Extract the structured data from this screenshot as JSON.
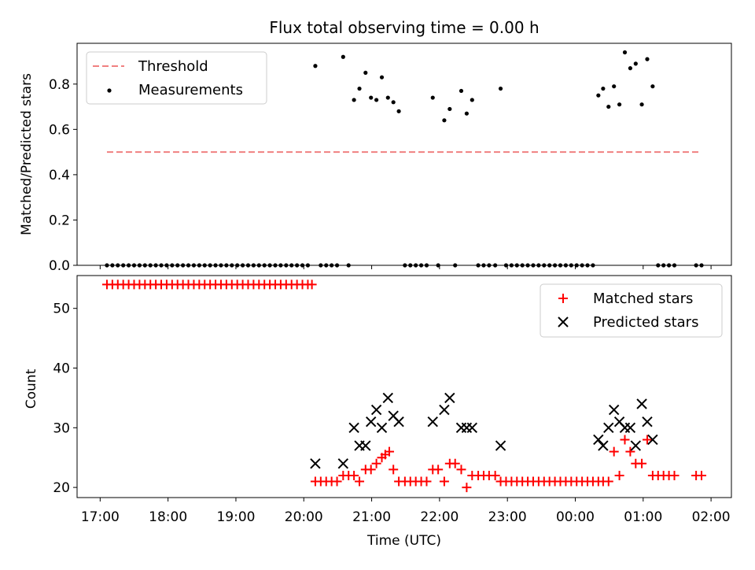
{
  "title": "Flux total observing time = 0.00 h",
  "colors": {
    "threshold": "#f08080",
    "measurement": "#000000",
    "matched": "#ff0000",
    "predicted": "#000000"
  },
  "chart_data": [
    {
      "type": "scatter",
      "ylabel": "Matched/Predicted stars",
      "ylim": [
        0,
        0.98
      ],
      "yticks": [
        0.0,
        0.2,
        0.4,
        0.6,
        0.8
      ],
      "ytick_labels": [
        "0.0",
        "0.2",
        "0.4",
        "0.6",
        "0.8"
      ],
      "xlim": [
        16.66,
        26.3
      ],
      "legend": {
        "placement": "upper-left",
        "entries": [
          "Threshold",
          "Measurements"
        ]
      },
      "threshold": {
        "name": "Threshold",
        "value": 0.5,
        "x_range": [
          17.1,
          25.85
        ]
      },
      "series": [
        {
          "name": "Measurements",
          "points": [
            [
              17.1,
              0
            ],
            [
              17.18,
              0
            ],
            [
              17.26,
              0
            ],
            [
              17.34,
              0
            ],
            [
              17.42,
              0
            ],
            [
              17.5,
              0
            ],
            [
              17.58,
              0
            ],
            [
              17.66,
              0
            ],
            [
              17.74,
              0
            ],
            [
              17.82,
              0
            ],
            [
              17.9,
              0
            ],
            [
              17.98,
              0
            ],
            [
              18.06,
              0
            ],
            [
              18.14,
              0
            ],
            [
              18.22,
              0
            ],
            [
              18.3,
              0
            ],
            [
              18.38,
              0
            ],
            [
              18.46,
              0
            ],
            [
              18.54,
              0
            ],
            [
              18.62,
              0
            ],
            [
              18.7,
              0
            ],
            [
              18.78,
              0
            ],
            [
              18.86,
              0
            ],
            [
              18.94,
              0
            ],
            [
              19.02,
              0
            ],
            [
              19.1,
              0
            ],
            [
              19.18,
              0
            ],
            [
              19.26,
              0
            ],
            [
              19.34,
              0
            ],
            [
              19.42,
              0
            ],
            [
              19.5,
              0
            ],
            [
              19.58,
              0
            ],
            [
              19.66,
              0
            ],
            [
              19.74,
              0
            ],
            [
              19.82,
              0
            ],
            [
              19.9,
              0
            ],
            [
              19.98,
              0
            ],
            [
              20.06,
              0
            ],
            [
              20.17,
              0.88
            ],
            [
              20.25,
              0
            ],
            [
              20.33,
              0
            ],
            [
              20.41,
              0
            ],
            [
              20.49,
              0
            ],
            [
              20.58,
              0.92
            ],
            [
              20.66,
              0
            ],
            [
              20.74,
              0.73
            ],
            [
              20.82,
              0.78
            ],
            [
              20.91,
              0.85
            ],
            [
              20.99,
              0.74
            ],
            [
              21.07,
              0.73
            ],
            [
              21.15,
              0.83
            ],
            [
              21.24,
              0.74
            ],
            [
              21.32,
              0.72
            ],
            [
              21.4,
              0.68
            ],
            [
              21.49,
              0
            ],
            [
              21.57,
              0
            ],
            [
              21.65,
              0
            ],
            [
              21.73,
              0
            ],
            [
              21.81,
              0
            ],
            [
              21.9,
              0.74
            ],
            [
              21.98,
              0
            ],
            [
              22.07,
              0.64
            ],
            [
              22.15,
              0.69
            ],
            [
              22.23,
              0
            ],
            [
              22.32,
              0.77
            ],
            [
              22.4,
              0.67
            ],
            [
              22.48,
              0.73
            ],
            [
              22.57,
              0
            ],
            [
              22.65,
              0
            ],
            [
              22.73,
              0
            ],
            [
              22.82,
              0
            ],
            [
              22.9,
              0.78
            ],
            [
              22.98,
              0
            ],
            [
              23.06,
              0
            ],
            [
              23.14,
              0
            ],
            [
              23.22,
              0
            ],
            [
              23.3,
              0
            ],
            [
              23.38,
              0
            ],
            [
              23.46,
              0
            ],
            [
              23.54,
              0
            ],
            [
              23.62,
              0
            ],
            [
              23.7,
              0
            ],
            [
              23.78,
              0
            ],
            [
              23.86,
              0
            ],
            [
              23.94,
              0
            ],
            [
              24.02,
              0
            ],
            [
              24.1,
              0
            ],
            [
              24.18,
              0
            ],
            [
              24.26,
              0
            ],
            [
              24.34,
              0.75
            ],
            [
              24.41,
              0.78
            ],
            [
              24.49,
              0.7
            ],
            [
              24.57,
              0.79
            ],
            [
              24.65,
              0.71
            ],
            [
              24.73,
              0.94
            ],
            [
              24.81,
              0.87
            ],
            [
              24.89,
              0.89
            ],
            [
              24.98,
              0.71
            ],
            [
              25.06,
              0.91
            ],
            [
              25.14,
              0.79
            ],
            [
              25.22,
              0
            ],
            [
              25.3,
              0
            ],
            [
              25.38,
              0
            ],
            [
              25.46,
              0
            ],
            [
              25.78,
              0
            ],
            [
              25.86,
              0
            ]
          ]
        }
      ]
    },
    {
      "type": "scatter",
      "xlabel": "Time (UTC)",
      "ylabel": "Count",
      "ylim": [
        18.3,
        55.5
      ],
      "yticks": [
        20,
        30,
        40,
        50
      ],
      "ytick_labels": [
        "20",
        "30",
        "40",
        "50"
      ],
      "xlim": [
        16.66,
        26.3
      ],
      "xticks": [
        17,
        18,
        19,
        20,
        21,
        22,
        23,
        24,
        25,
        26
      ],
      "xtick_labels": [
        "17:00",
        "18:00",
        "19:00",
        "20:00",
        "21:00",
        "22:00",
        "23:00",
        "00:00",
        "01:00",
        "02:00"
      ],
      "legend": {
        "placement": "upper-right",
        "entries": [
          "Matched stars",
          "Predicted stars"
        ]
      },
      "series": [
        {
          "name": "Matched stars",
          "points": [
            [
              17.1,
              54
            ],
            [
              17.18,
              54
            ],
            [
              17.26,
              54
            ],
            [
              17.34,
              54
            ],
            [
              17.42,
              54
            ],
            [
              17.5,
              54
            ],
            [
              17.58,
              54
            ],
            [
              17.66,
              54
            ],
            [
              17.74,
              54
            ],
            [
              17.82,
              54
            ],
            [
              17.9,
              54
            ],
            [
              17.98,
              54
            ],
            [
              18.06,
              54
            ],
            [
              18.14,
              54
            ],
            [
              18.22,
              54
            ],
            [
              18.3,
              54
            ],
            [
              18.38,
              54
            ],
            [
              18.46,
              54
            ],
            [
              18.54,
              54
            ],
            [
              18.62,
              54
            ],
            [
              18.7,
              54
            ],
            [
              18.78,
              54
            ],
            [
              18.86,
              54
            ],
            [
              18.94,
              54
            ],
            [
              19.02,
              54
            ],
            [
              19.1,
              54
            ],
            [
              19.18,
              54
            ],
            [
              19.26,
              54
            ],
            [
              19.34,
              54
            ],
            [
              19.42,
              54
            ],
            [
              19.5,
              54
            ],
            [
              19.58,
              54
            ],
            [
              19.66,
              54
            ],
            [
              19.74,
              54
            ],
            [
              19.82,
              54
            ],
            [
              19.9,
              54
            ],
            [
              19.98,
              54
            ],
            [
              20.06,
              54
            ],
            [
              20.12,
              54
            ],
            [
              20.17,
              21
            ],
            [
              20.25,
              21
            ],
            [
              20.33,
              21
            ],
            [
              20.41,
              21
            ],
            [
              20.49,
              21
            ],
            [
              20.58,
              22
            ],
            [
              20.66,
              22
            ],
            [
              20.74,
              22
            ],
            [
              20.82,
              21
            ],
            [
              20.91,
              23
            ],
            [
              20.99,
              23
            ],
            [
              21.07,
              24
            ],
            [
              21.15,
              25
            ],
            [
              21.2,
              25.5
            ],
            [
              21.26,
              26
            ],
            [
              21.32,
              23
            ],
            [
              21.4,
              21
            ],
            [
              21.49,
              21
            ],
            [
              21.57,
              21
            ],
            [
              21.65,
              21
            ],
            [
              21.73,
              21
            ],
            [
              21.81,
              21
            ],
            [
              21.9,
              23
            ],
            [
              21.98,
              23
            ],
            [
              22.07,
              21
            ],
            [
              22.15,
              24
            ],
            [
              22.23,
              24
            ],
            [
              22.32,
              23
            ],
            [
              22.4,
              20
            ],
            [
              22.48,
              22
            ],
            [
              22.57,
              22
            ],
            [
              22.65,
              22
            ],
            [
              22.73,
              22
            ],
            [
              22.82,
              22
            ],
            [
              22.9,
              21
            ],
            [
              22.98,
              21
            ],
            [
              23.06,
              21
            ],
            [
              23.14,
              21
            ],
            [
              23.22,
              21
            ],
            [
              23.3,
              21
            ],
            [
              23.38,
              21
            ],
            [
              23.46,
              21
            ],
            [
              23.54,
              21
            ],
            [
              23.62,
              21
            ],
            [
              23.7,
              21
            ],
            [
              23.78,
              21
            ],
            [
              23.86,
              21
            ],
            [
              23.94,
              21
            ],
            [
              24.02,
              21
            ],
            [
              24.1,
              21
            ],
            [
              24.18,
              21
            ],
            [
              24.26,
              21
            ],
            [
              24.34,
              21
            ],
            [
              24.41,
              21
            ],
            [
              24.49,
              21
            ],
            [
              24.57,
              26
            ],
            [
              24.65,
              22
            ],
            [
              24.73,
              28
            ],
            [
              24.81,
              26
            ],
            [
              24.89,
              24
            ],
            [
              24.98,
              24
            ],
            [
              25.06,
              28
            ],
            [
              25.14,
              22
            ],
            [
              25.22,
              22
            ],
            [
              25.3,
              22
            ],
            [
              25.38,
              22
            ],
            [
              25.46,
              22
            ],
            [
              25.78,
              22
            ],
            [
              25.86,
              22
            ]
          ]
        },
        {
          "name": "Predicted stars",
          "points": [
            [
              20.17,
              24
            ],
            [
              20.58,
              24
            ],
            [
              20.74,
              30
            ],
            [
              20.82,
              27
            ],
            [
              20.91,
              27
            ],
            [
              20.99,
              31
            ],
            [
              21.07,
              33
            ],
            [
              21.15,
              30
            ],
            [
              21.24,
              35
            ],
            [
              21.32,
              32
            ],
            [
              21.4,
              31
            ],
            [
              21.9,
              31
            ],
            [
              22.07,
              33
            ],
            [
              22.15,
              35
            ],
            [
              22.32,
              30
            ],
            [
              22.4,
              30
            ],
            [
              22.48,
              30
            ],
            [
              22.9,
              27
            ],
            [
              24.34,
              28
            ],
            [
              24.41,
              27
            ],
            [
              24.49,
              30
            ],
            [
              24.57,
              33
            ],
            [
              24.65,
              31
            ],
            [
              24.73,
              30
            ],
            [
              24.81,
              30
            ],
            [
              24.89,
              27
            ],
            [
              24.98,
              34
            ],
            [
              25.06,
              31
            ],
            [
              25.14,
              28
            ]
          ]
        }
      ]
    }
  ]
}
